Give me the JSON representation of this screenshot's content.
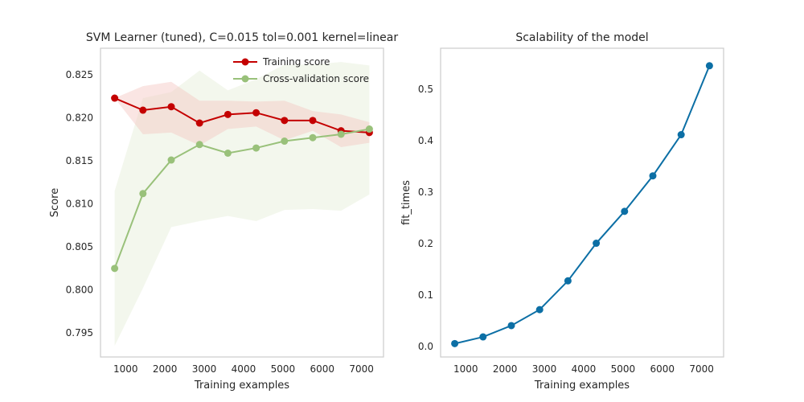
{
  "chart_data": [
    {
      "type": "line",
      "title": "SVM Learner (tuned), C=0.015 tol=0.001 kernel=linear",
      "xlabel": "Training examples",
      "ylabel": "Score",
      "xlim": [
        360,
        7560
      ],
      "ylim": [
        0.7922,
        0.8281
      ],
      "xticks": [
        1000,
        2000,
        3000,
        4000,
        5000,
        6000,
        7000
      ],
      "yticks": [
        0.795,
        0.8,
        0.805,
        0.81,
        0.815,
        0.82,
        0.825
      ],
      "ytick_labels": [
        "0.795",
        "0.800",
        "0.805",
        "0.810",
        "0.815",
        "0.820",
        "0.825"
      ],
      "xtick_labels": [
        "1000",
        "2000",
        "3000",
        "4000",
        "5000",
        "6000",
        "7000"
      ],
      "grid": false,
      "legend": "top-right",
      "x": [
        720,
        1440,
        2160,
        2880,
        3600,
        4320,
        5040,
        5760,
        6480,
        7200
      ],
      "series": [
        {
          "name": "Training score",
          "color": "#c40000",
          "band_color": "#f4c6c0",
          "values": [
            0.8223,
            0.8209,
            0.8213,
            0.8194,
            0.8204,
            0.8206,
            0.8197,
            0.8197,
            0.8185,
            0.8183
          ],
          "upper": [
            0.8223,
            0.8237,
            0.8242,
            0.822,
            0.822,
            0.8219,
            0.822,
            0.8208,
            0.8204,
            0.8195
          ],
          "lower": [
            0.8223,
            0.8181,
            0.8183,
            0.8168,
            0.8187,
            0.819,
            0.8174,
            0.8185,
            0.8166,
            0.8171
          ]
        },
        {
          "name": "Cross-validation score",
          "color": "#99c17a",
          "band_color": "#e4eed8",
          "values": [
            0.8025,
            0.8112,
            0.8151,
            0.8169,
            0.8159,
            0.8165,
            0.8173,
            0.8177,
            0.8181,
            0.8187
          ],
          "upper": [
            0.8115,
            0.8223,
            0.823,
            0.8255,
            0.8232,
            0.8245,
            0.8262,
            0.8262,
            0.8265,
            0.8261
          ],
          "lower": [
            0.7935,
            0.8002,
            0.8073,
            0.808,
            0.8086,
            0.808,
            0.8093,
            0.8094,
            0.8092,
            0.8111
          ]
        }
      ]
    },
    {
      "type": "line",
      "title": "Scalability of the model",
      "xlabel": "Training examples",
      "ylabel": "fit_times",
      "xlim": [
        360,
        7560
      ],
      "ylim": [
        -0.02,
        0.58
      ],
      "xticks": [
        1000,
        2000,
        3000,
        4000,
        5000,
        6000,
        7000
      ],
      "yticks": [
        0.0,
        0.1,
        0.2,
        0.3,
        0.4,
        0.5
      ],
      "ytick_labels": [
        "0.0",
        "0.1",
        "0.2",
        "0.3",
        "0.4",
        "0.5"
      ],
      "xtick_labels": [
        "1000",
        "2000",
        "3000",
        "4000",
        "5000",
        "6000",
        "7000"
      ],
      "grid": false,
      "x": [
        720,
        1440,
        2160,
        2880,
        3600,
        4320,
        5040,
        5760,
        6480,
        7200
      ],
      "series": [
        {
          "name": "",
          "color": "#0c6fa5",
          "values": [
            0.006,
            0.019,
            0.041,
            0.072,
            0.128,
            0.201,
            0.263,
            0.332,
            0.412,
            0.546
          ]
        }
      ]
    }
  ]
}
